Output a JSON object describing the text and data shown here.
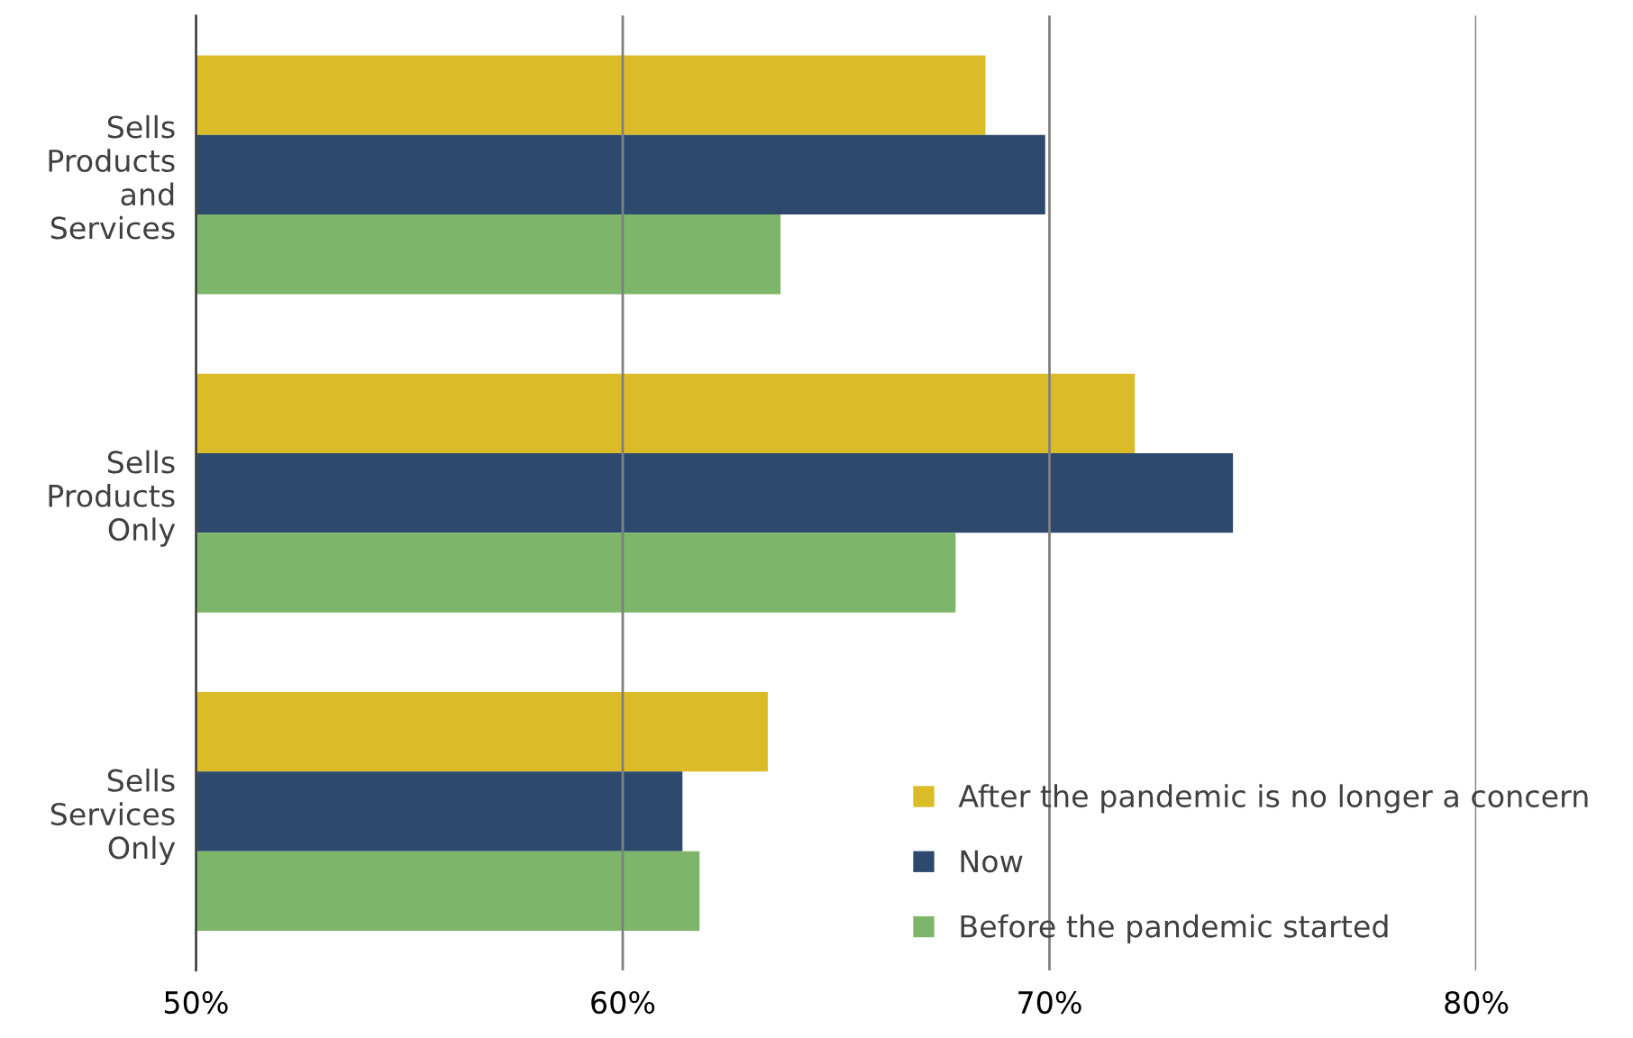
{
  "chart_data": {
    "type": "bar",
    "orientation": "horizontal",
    "categories": [
      "Sells\nProducts\nand\nServices",
      "Sells\nProducts\nOnly",
      "Sells\nServices\nOnly"
    ],
    "series": [
      {
        "name": "After the pandemic is no longer a concern",
        "color": "#dbbb27",
        "values": [
          68.5,
          72.0,
          63.4
        ]
      },
      {
        "name": "Now",
        "color": "#2d4a6e",
        "values": [
          69.9,
          74.3,
          61.4
        ]
      },
      {
        "name": "Before the pandemic started",
        "color": "#7db66a",
        "values": [
          63.7,
          67.8,
          61.8
        ]
      }
    ],
    "xlim": [
      50,
      80
    ],
    "xticks": [
      {
        "value": 50,
        "label": "50%"
      },
      {
        "value": 60,
        "label": "60%"
      },
      {
        "value": 70,
        "label": "70%"
      },
      {
        "value": 80,
        "label": "80%"
      }
    ],
    "grid": "x",
    "legend": "bottom right"
  }
}
